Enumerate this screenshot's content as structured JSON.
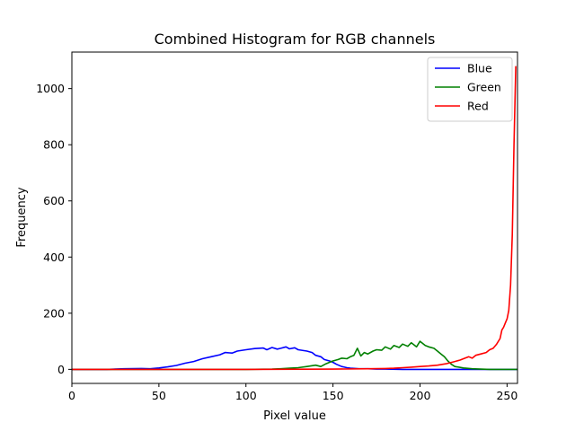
{
  "chart_data": {
    "type": "line",
    "title": "Combined Histogram for RGB channels",
    "xlabel": "Pixel value",
    "ylabel": "Frequency",
    "xlim": [
      0,
      256
    ],
    "ylim": [
      -50,
      1130
    ],
    "xticks": [
      0,
      50,
      100,
      150,
      200,
      250
    ],
    "yticks": [
      0,
      200,
      400,
      600,
      800,
      1000
    ],
    "grid": false,
    "legend_position": "top-right",
    "series": [
      {
        "name": "Blue",
        "color": "#0000ff",
        "x": [
          0,
          20,
          30,
          40,
          45,
          50,
          55,
          60,
          65,
          70,
          75,
          80,
          85,
          88,
          92,
          95,
          100,
          105,
          110,
          112,
          115,
          118,
          120,
          123,
          125,
          128,
          130,
          135,
          138,
          140,
          143,
          145,
          148,
          150,
          152,
          155,
          158,
          160,
          165,
          170,
          175,
          180,
          190,
          200,
          210,
          220,
          230,
          240,
          256
        ],
        "values": [
          0,
          0,
          2,
          3,
          2,
          5,
          9,
          14,
          22,
          28,
          38,
          45,
          52,
          60,
          58,
          65,
          70,
          74,
          76,
          70,
          78,
          72,
          75,
          80,
          73,
          77,
          70,
          65,
          60,
          50,
          45,
          35,
          30,
          25,
          18,
          10,
          6,
          4,
          2,
          2,
          1,
          1,
          0,
          0,
          0,
          0,
          0,
          0,
          0
        ]
      },
      {
        "name": "Green",
        "color": "#008000",
        "x": [
          0,
          100,
          115,
          120,
          125,
          130,
          135,
          140,
          143,
          146,
          148,
          150,
          153,
          155,
          158,
          160,
          162,
          164,
          166,
          168,
          170,
          173,
          175,
          178,
          180,
          183,
          185,
          188,
          190,
          193,
          195,
          198,
          200,
          203,
          205,
          208,
          210,
          212,
          214,
          216,
          218,
          220,
          225,
          230,
          240,
          256
        ],
        "values": [
          0,
          0,
          1,
          2,
          4,
          6,
          10,
          15,
          10,
          20,
          25,
          30,
          35,
          40,
          38,
          45,
          50,
          75,
          48,
          60,
          55,
          65,
          70,
          68,
          80,
          72,
          85,
          78,
          90,
          82,
          95,
          80,
          100,
          85,
          80,
          75,
          65,
          55,
          45,
          30,
          18,
          10,
          5,
          2,
          0,
          0
        ]
      },
      {
        "name": "Red",
        "color": "#ff0000",
        "x": [
          0,
          50,
          100,
          150,
          170,
          180,
          185,
          190,
          195,
          200,
          205,
          210,
          215,
          220,
          223,
          225,
          228,
          230,
          232,
          235,
          238,
          240,
          242,
          244,
          246,
          247,
          248,
          249,
          250,
          251,
          252,
          253,
          254,
          255
        ],
        "values": [
          0,
          0,
          0,
          1,
          2,
          3,
          4,
          6,
          8,
          10,
          12,
          15,
          20,
          28,
          33,
          38,
          45,
          40,
          50,
          55,
          60,
          70,
          75,
          90,
          110,
          140,
          150,
          165,
          180,
          210,
          300,
          480,
          800,
          1080
        ]
      }
    ]
  }
}
